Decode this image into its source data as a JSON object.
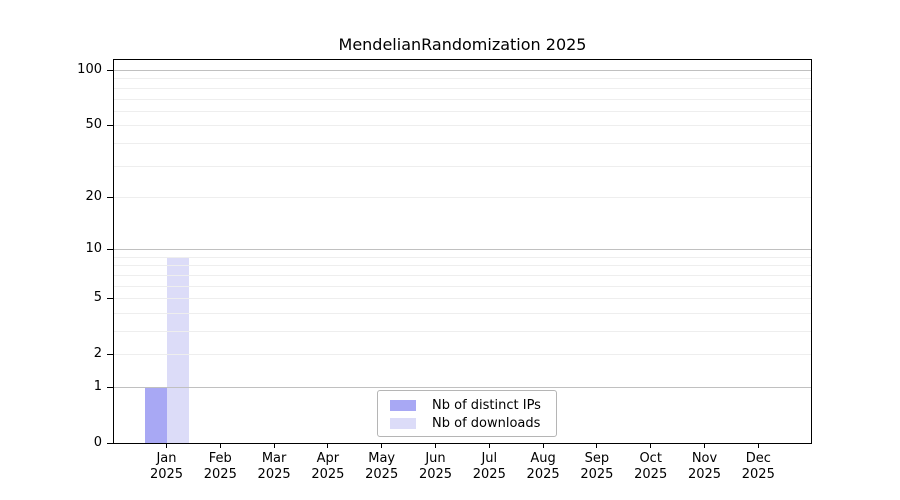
{
  "title": "MendelianRandomization 2025",
  "chart_data": {
    "type": "bar",
    "title": "MendelianRandomization 2025",
    "categories": [
      "Jan",
      "Feb",
      "Mar",
      "Apr",
      "May",
      "Jun",
      "Jul",
      "Aug",
      "Sep",
      "Oct",
      "Nov",
      "Dec"
    ],
    "category_year": "2025",
    "series": [
      {
        "name": "Nb of distinct IPs",
        "color": "#a8a8f4",
        "values": [
          1,
          0,
          0,
          0,
          0,
          0,
          0,
          0,
          0,
          0,
          0,
          0
        ]
      },
      {
        "name": "Nb of downloads",
        "color": "#dcdcf8",
        "values": [
          9,
          0,
          0,
          0,
          0,
          0,
          0,
          0,
          0,
          0,
          0,
          0
        ]
      }
    ],
    "xlabel": "",
    "ylabel": "",
    "y_scale": "log1p",
    "ylim": [
      0,
      113
    ],
    "y_ticks": [
      0,
      1,
      2,
      5,
      10,
      20,
      50,
      100
    ],
    "grid": {
      "major_lines": [
        1,
        10,
        100
      ],
      "minor_lines": [
        2,
        3,
        4,
        5,
        6,
        7,
        8,
        9,
        20,
        30,
        40,
        50,
        60,
        70,
        80,
        90
      ],
      "major_color": "#c0c0c0",
      "minor_color": "#eeeeee"
    },
    "legend_position": "inside-bottom-center"
  },
  "colors": {
    "background": "#ffffff",
    "axis": "#000000",
    "text": "#000000"
  }
}
